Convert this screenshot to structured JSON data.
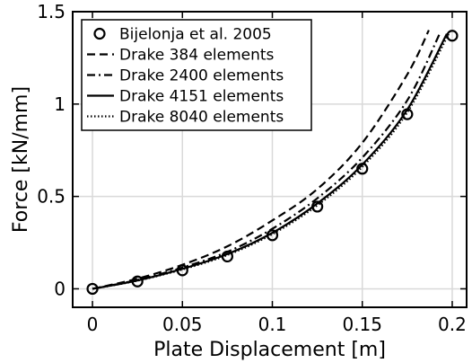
{
  "chart_data": {
    "type": "line",
    "xlabel": "Plate Displacement [m]",
    "ylabel": "Force [kN/mm]",
    "xlim": [
      -0.011,
      0.208
    ],
    "ylim": [
      -0.1,
      1.5
    ],
    "xticks": [
      0,
      0.05,
      0.1,
      0.15,
      0.2
    ],
    "xtick_labels": [
      "0",
      "0.05",
      "0.1",
      "0.15",
      "0.2"
    ],
    "yticks": [
      0,
      0.5,
      1,
      1.5
    ],
    "ytick_labels": [
      "0",
      "0.5",
      "1",
      "1.5"
    ],
    "grid": true,
    "legend_position": "top-left",
    "series": [
      {
        "name": "Bijelonja et al. 2005",
        "style": "markers",
        "marker": "open-circle",
        "color": "#000000",
        "x": [
          0,
          0.025,
          0.05,
          0.075,
          0.1,
          0.125,
          0.15,
          0.175,
          0.2
        ],
        "y": [
          0,
          0.04,
          0.1,
          0.175,
          0.29,
          0.445,
          0.65,
          0.945,
          1.37
        ]
      },
      {
        "name": "Drake 384 elements",
        "style": "dashed",
        "color": "#000000",
        "x": [
          0,
          0.025,
          0.05,
          0.075,
          0.1,
          0.125,
          0.15,
          0.175,
          0.187
        ],
        "y": [
          0,
          0.055,
          0.13,
          0.23,
          0.37,
          0.54,
          0.79,
          1.16,
          1.4
        ]
      },
      {
        "name": "Drake 2400 elements",
        "style": "dash-dot",
        "color": "#000000",
        "x": [
          0,
          0.025,
          0.05,
          0.075,
          0.1,
          0.125,
          0.15,
          0.175,
          0.193
        ],
        "y": [
          0,
          0.048,
          0.115,
          0.2,
          0.325,
          0.49,
          0.71,
          1.02,
          1.38
        ]
      },
      {
        "name": "Drake 4151 elements",
        "style": "solid",
        "color": "#000000",
        "x": [
          0,
          0.025,
          0.05,
          0.075,
          0.1,
          0.125,
          0.15,
          0.175,
          0.197
        ],
        "y": [
          0,
          0.045,
          0.108,
          0.188,
          0.303,
          0.462,
          0.672,
          0.97,
          1.38
        ]
      },
      {
        "name": "Drake 8040 elements",
        "style": "dotted",
        "color": "#000000",
        "x": [
          0,
          0.025,
          0.05,
          0.075,
          0.1,
          0.125,
          0.15,
          0.175,
          0.198
        ],
        "y": [
          0,
          0.044,
          0.105,
          0.183,
          0.296,
          0.452,
          0.66,
          0.955,
          1.38
        ]
      }
    ]
  }
}
